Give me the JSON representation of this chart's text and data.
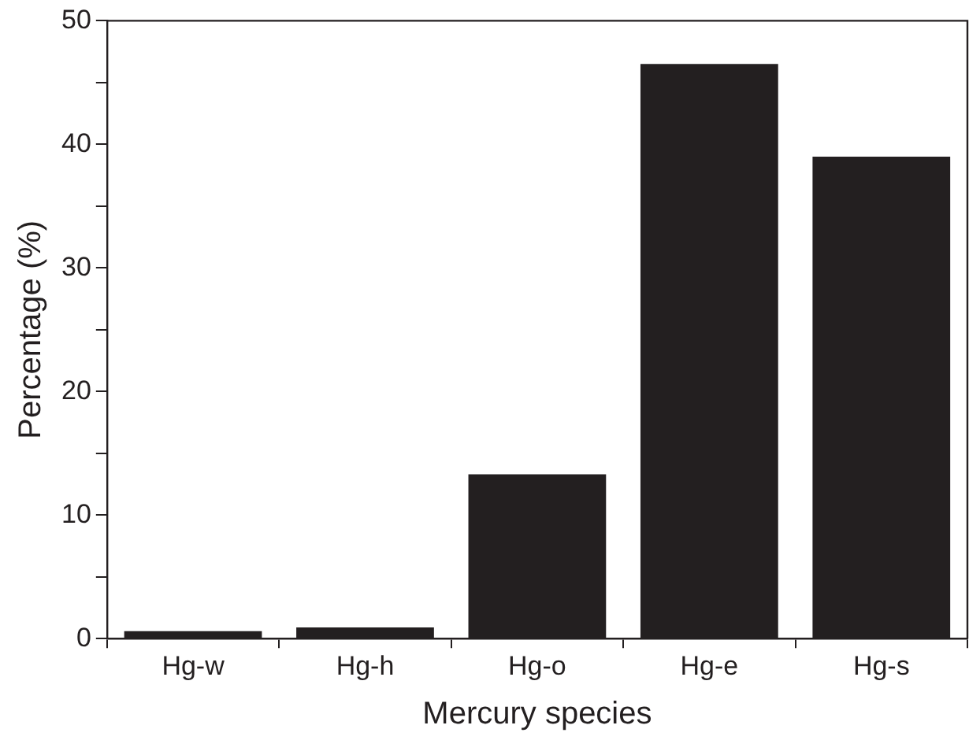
{
  "chart_data": {
    "type": "bar",
    "xlabel": "Mercury species",
    "ylabel": "Percentage (%)",
    "categories": [
      "Hg-w",
      "Hg-h",
      "Hg-o",
      "Hg-e",
      "Hg-s"
    ],
    "values": [
      0.6,
      0.9,
      13.3,
      46.5,
      39.0
    ],
    "color": "#231f20",
    "ylim": [
      0,
      50
    ],
    "yticks": [
      0,
      {
        "value": 5,
        "label": null
      },
      10,
      {
        "value": 15,
        "label": null
      },
      20,
      {
        "value": 25,
        "label": null
      },
      30,
      {
        "value": 35,
        "label": null
      },
      40,
      {
        "value": 45,
        "label": null
      },
      50
    ],
    "grid": false,
    "legend": false
  }
}
